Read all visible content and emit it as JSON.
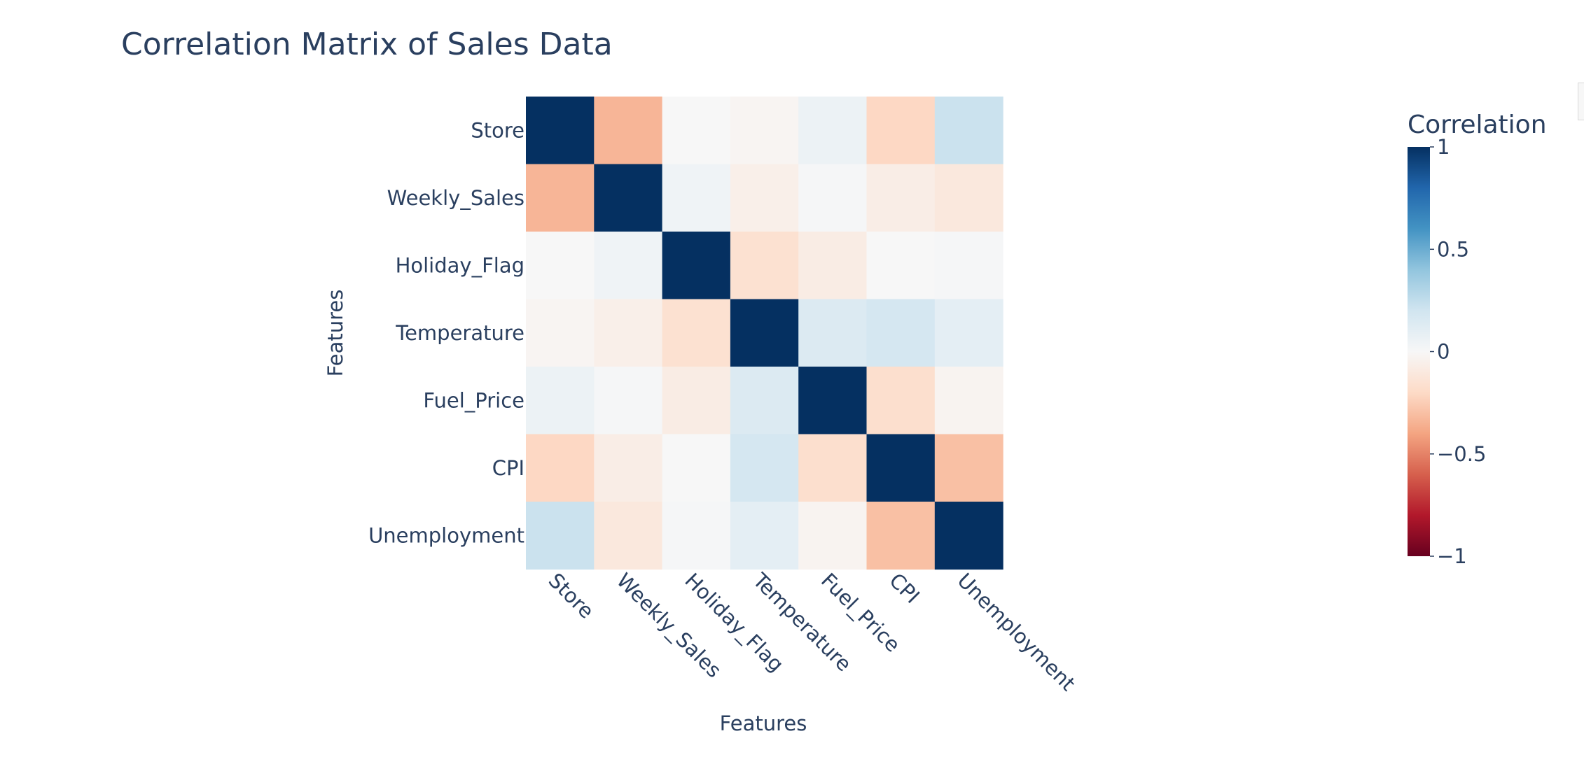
{
  "chart_data": {
    "type": "heatmap",
    "title": "Correlation Matrix of Sales Data",
    "xlabel": "Features",
    "ylabel": "Features",
    "x": [
      "Store",
      "Weekly_Sales",
      "Holiday_Flag",
      "Temperature",
      "Fuel_Price",
      "CPI",
      "Unemployment"
    ],
    "y": [
      "Store",
      "Weekly_Sales",
      "Holiday_Flag",
      "Temperature",
      "Fuel_Price",
      "CPI",
      "Unemployment"
    ],
    "z": [
      [
        1.0,
        -0.34,
        0.0,
        -0.02,
        0.06,
        -0.21,
        0.22
      ],
      [
        -0.34,
        1.0,
        0.04,
        -0.06,
        0.01,
        -0.07,
        -0.11
      ],
      [
        0.0,
        0.04,
        1.0,
        -0.16,
        -0.08,
        -0.0,
        0.01
      ],
      [
        -0.02,
        -0.06,
        -0.16,
        1.0,
        0.14,
        0.18,
        0.1
      ],
      [
        0.06,
        0.01,
        -0.08,
        0.14,
        1.0,
        -0.17,
        -0.03
      ],
      [
        -0.21,
        -0.07,
        -0.0,
        0.18,
        -0.17,
        1.0,
        -0.3
      ],
      [
        0.22,
        -0.11,
        0.01,
        0.1,
        -0.03,
        -0.3,
        1.0
      ]
    ],
    "zmin": -1,
    "zmax": 1,
    "colorscale": "RdBu",
    "colorbar": {
      "title": "Correlation",
      "ticks": [
        "1",
        "0.5",
        "0",
        "−0.5",
        "−1"
      ],
      "tick_values": [
        1,
        0.5,
        0,
        -0.5,
        -1
      ]
    }
  }
}
